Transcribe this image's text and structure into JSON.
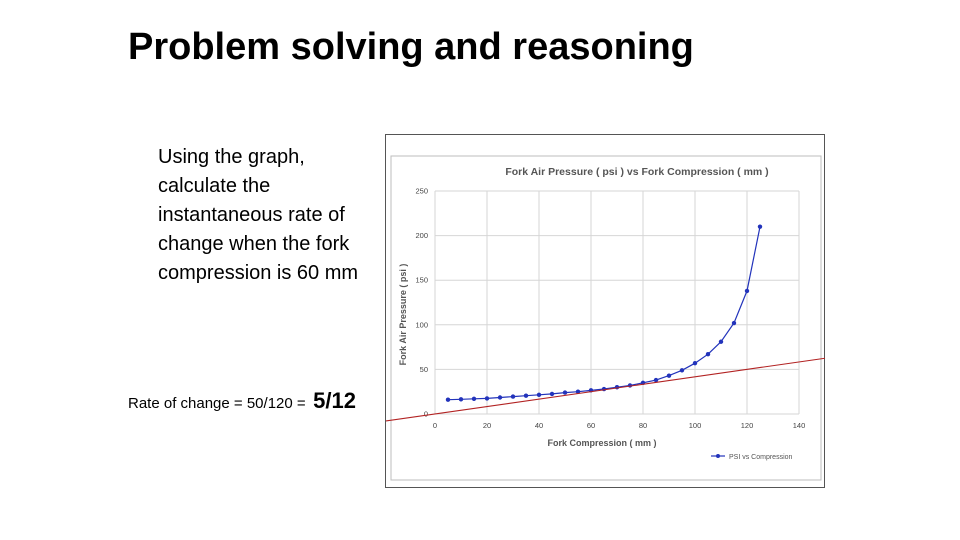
{
  "slide": {
    "title": "Problem solving and reasoning",
    "prompt": "Using the graph, calculate the instantaneous rate of change when the fork compression is 60 mm",
    "answer_formula": "Rate of change = 50/120 =",
    "answer_result": "5/12"
  },
  "chart_data": {
    "type": "line",
    "title": "Fork Air Pressure ( psi ) vs Fork Compression ( mm )",
    "xlabel": "Fork Compression ( mm )",
    "ylabel": "Fork Air Pressure ( psi )",
    "xlim": [
      0,
      140
    ],
    "ylim": [
      0,
      250
    ],
    "xticks": [
      0,
      20,
      40,
      60,
      80,
      100,
      120,
      140
    ],
    "yticks": [
      0,
      50,
      100,
      150,
      200,
      250
    ],
    "grid": true,
    "legend_position": "bottom-right",
    "series": [
      {
        "name": "PSI vs Compression",
        "color": "#2233bb",
        "x": [
          5,
          10,
          15,
          20,
          25,
          30,
          35,
          40,
          45,
          50,
          55,
          60,
          65,
          70,
          75,
          80,
          85,
          90,
          95,
          100,
          105,
          110,
          115,
          120,
          125
        ],
        "y": [
          16,
          16.5,
          17,
          17.5,
          18.5,
          19.5,
          20.5,
          21.5,
          22.5,
          24,
          25,
          26.5,
          28,
          30,
          32,
          35,
          38,
          43,
          49,
          57,
          67,
          81,
          102,
          138,
          210
        ]
      }
    ],
    "tangent_line": {
      "color": "#b22222",
      "x": [
        -20,
        150
      ],
      "y": [
        -8.3,
        62.5
      ]
    }
  }
}
